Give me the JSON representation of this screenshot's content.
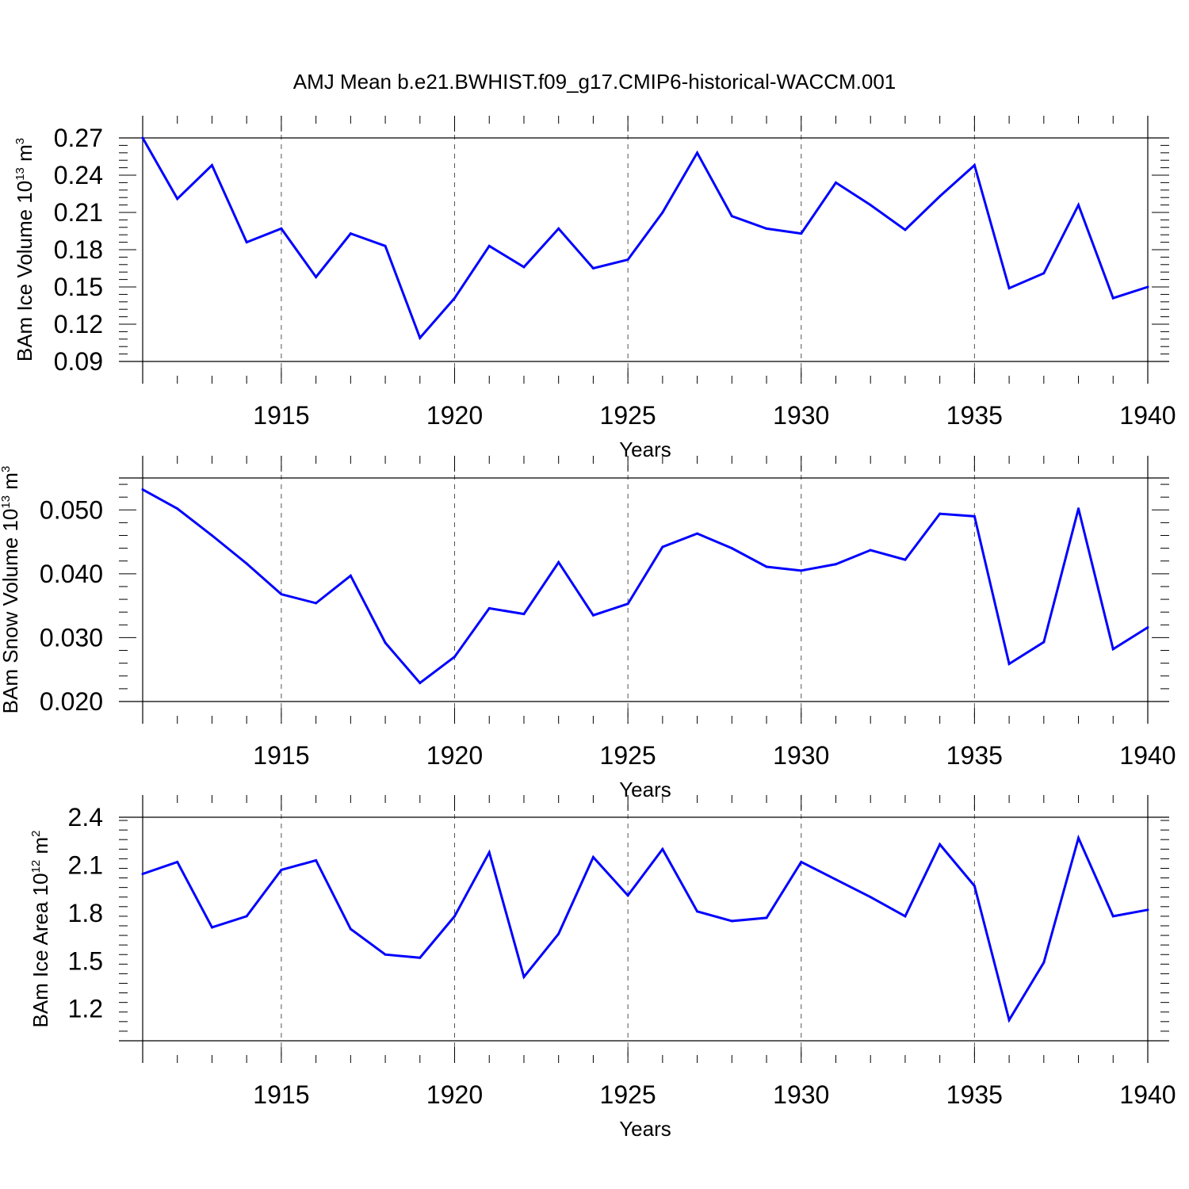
{
  "title": "AMJ Mean b.e21.BWHIST.f09_g17.CMIP6-historical-WACCM.001",
  "colors": {
    "line": "#0000ff",
    "axis": "#000000",
    "grid": "#555555"
  },
  "chart_data": [
    {
      "type": "line",
      "xlabel": "Years",
      "ylabel": "BAm Ice Volume 10",
      "ylabel_exp": "13",
      "ylabel_unit": " m",
      "ylabel_unit_exp": "3",
      "xlim": [
        1911,
        1940
      ],
      "ylim": [
        0.09,
        0.27
      ],
      "xticks": [
        1915,
        1920,
        1925,
        1930,
        1935,
        1940
      ],
      "xtick_labels": [
        "1915",
        "1920",
        "1925",
        "1930",
        "1935",
        "1940"
      ],
      "yticks": [
        0.09,
        0.12,
        0.15,
        0.18,
        0.21,
        0.24,
        0.27
      ],
      "ytick_labels": [
        "0.09",
        "0.12",
        "0.15",
        "0.18",
        "0.21",
        "0.24",
        "0.27"
      ],
      "grid": "vertical dashed at major x ticks",
      "x": [
        1911,
        1912,
        1913,
        1914,
        1915,
        1916,
        1917,
        1918,
        1919,
        1920,
        1921,
        1922,
        1923,
        1924,
        1925,
        1926,
        1927,
        1928,
        1929,
        1930,
        1931,
        1932,
        1933,
        1934,
        1935,
        1936,
        1937,
        1938,
        1939,
        1940
      ],
      "y": [
        0.27,
        0.221,
        0.248,
        0.186,
        0.197,
        0.158,
        0.193,
        0.183,
        0.109,
        0.141,
        0.183,
        0.166,
        0.197,
        0.165,
        0.172,
        0.21,
        0.258,
        0.207,
        0.197,
        0.193,
        0.234,
        0.216,
        0.196,
        0.223,
        0.248,
        0.149,
        0.161,
        0.216,
        0.141,
        0.15
      ]
    },
    {
      "type": "line",
      "xlabel": "Years",
      "ylabel": "BAm Snow Volume 10",
      "ylabel_exp": "13",
      "ylabel_unit": " m",
      "ylabel_unit_exp": "3",
      "xlim": [
        1911,
        1940
      ],
      "ylim": [
        0.02,
        0.055
      ],
      "xticks": [
        1915,
        1920,
        1925,
        1930,
        1935,
        1940
      ],
      "xtick_labels": [
        "1915",
        "1920",
        "1925",
        "1930",
        "1935",
        "1940"
      ],
      "yticks": [
        0.02,
        0.03,
        0.04,
        0.05
      ],
      "ytick_labels": [
        "0.020",
        "0.030",
        "0.040",
        "0.050"
      ],
      "grid": "vertical dashed at major x ticks",
      "x": [
        1911,
        1912,
        1913,
        1914,
        1915,
        1916,
        1917,
        1918,
        1919,
        1920,
        1921,
        1922,
        1923,
        1924,
        1925,
        1926,
        1927,
        1928,
        1929,
        1930,
        1931,
        1932,
        1933,
        1934,
        1935,
        1936,
        1937,
        1938,
        1939,
        1940
      ],
      "y": [
        0.0532,
        0.0502,
        0.046,
        0.0416,
        0.0368,
        0.0354,
        0.0397,
        0.0292,
        0.0229,
        0.027,
        0.0346,
        0.0337,
        0.0418,
        0.0335,
        0.0353,
        0.0442,
        0.0463,
        0.044,
        0.0411,
        0.0405,
        0.0415,
        0.0437,
        0.0422,
        0.0494,
        0.049,
        0.0259,
        0.0293,
        0.0502,
        0.0282,
        0.0316
      ]
    },
    {
      "type": "line",
      "xlabel": "Years",
      "ylabel": "BAm Ice Area 10",
      "ylabel_exp": "12",
      "ylabel_unit": " m",
      "ylabel_unit_exp": "2",
      "xlim": [
        1911,
        1940
      ],
      "ylim": [
        1.0,
        2.4
      ],
      "xticks": [
        1915,
        1920,
        1925,
        1930,
        1935,
        1940
      ],
      "xtick_labels": [
        "1915",
        "1920",
        "1925",
        "1930",
        "1935",
        "1940"
      ],
      "yticks": [
        1.2,
        1.5,
        1.8,
        2.1,
        2.4
      ],
      "ytick_labels": [
        "1.2",
        "1.5",
        "1.8",
        "2.1",
        "2.4"
      ],
      "grid": "vertical dashed at major x ticks",
      "x": [
        1911,
        1912,
        1913,
        1914,
        1915,
        1916,
        1917,
        1918,
        1919,
        1920,
        1921,
        1922,
        1923,
        1924,
        1925,
        1926,
        1927,
        1928,
        1929,
        1930,
        1931,
        1932,
        1933,
        1934,
        1935,
        1936,
        1937,
        1938,
        1939,
        1940
      ],
      "y": [
        2.045,
        2.12,
        1.71,
        1.78,
        2.07,
        2.13,
        1.7,
        1.54,
        1.52,
        1.78,
        2.18,
        1.4,
        1.67,
        2.15,
        1.91,
        2.2,
        1.81,
        1.75,
        1.77,
        2.12,
        2.01,
        1.9,
        1.78,
        2.23,
        1.97,
        1.13,
        1.49,
        2.27,
        1.78,
        1.82
      ]
    }
  ]
}
